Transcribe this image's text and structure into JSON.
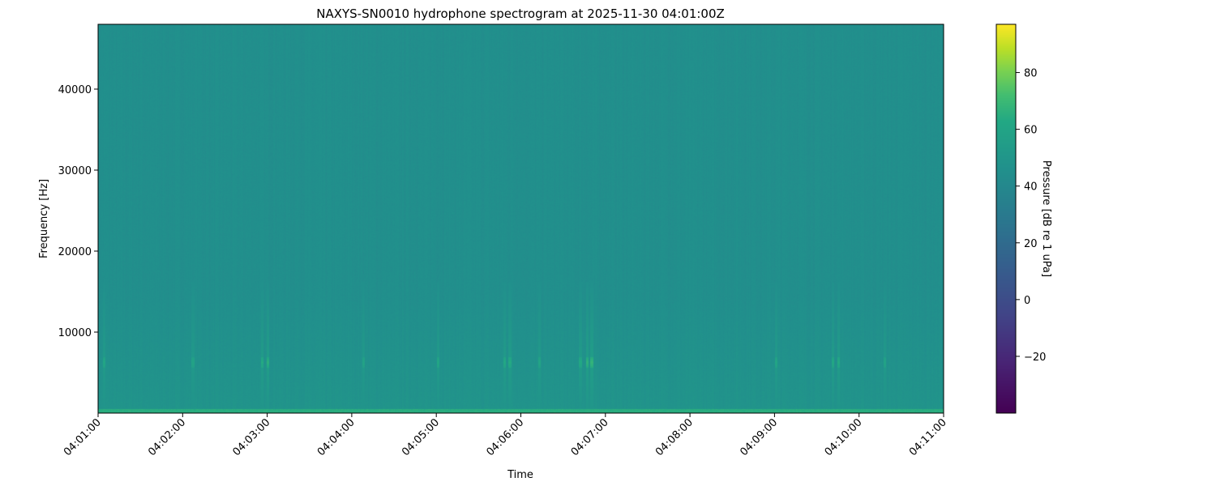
{
  "chart_data": {
    "type": "heatmap",
    "title": "NAXYS-SN0010 hydrophone spectrogram at 2025-11-30 04:01:00Z",
    "xlabel": "Time",
    "ylabel": "Frequency [Hz]",
    "xlim": [
      "04:01:00",
      "04:11:00"
    ],
    "ylim": [
      0,
      48000
    ],
    "x_ticks": [
      "04:01:00",
      "04:02:00",
      "04:03:00",
      "04:04:00",
      "04:05:00",
      "04:06:00",
      "04:07:00",
      "04:08:00",
      "04:09:00",
      "04:10:00",
      "04:11:00"
    ],
    "y_ticks": [
      10000,
      20000,
      30000,
      40000
    ],
    "colormap": "viridis",
    "colorbar": {
      "label": "Pressure [dB re 1 uPa]",
      "range": [
        -40,
        97
      ],
      "ticks": [
        -20,
        0,
        20,
        40,
        60,
        80
      ]
    },
    "background_level_db": 45,
    "low_frequency_band": {
      "freq_hz": [
        0,
        500
      ],
      "level_db": 65
    },
    "transient_events": [
      {
        "time": "04:01:04",
        "freq_hz": 6300,
        "level_db": 62
      },
      {
        "time": "04:02:07",
        "freq_hz": 6300,
        "level_db": 60
      },
      {
        "time": "04:02:56",
        "freq_hz": 6300,
        "level_db": 64
      },
      {
        "time": "04:03:00",
        "freq_hz": 6300,
        "level_db": 66
      },
      {
        "time": "04:04:08",
        "freq_hz": 6300,
        "level_db": 60
      },
      {
        "time": "04:05:01",
        "freq_hz": 6300,
        "level_db": 62
      },
      {
        "time": "04:05:48",
        "freq_hz": 6300,
        "level_db": 63
      },
      {
        "time": "04:05:52",
        "freq_hz": 6300,
        "level_db": 64
      },
      {
        "time": "04:06:13",
        "freq_hz": 6300,
        "level_db": 61
      },
      {
        "time": "04:06:42",
        "freq_hz": 6300,
        "level_db": 63
      },
      {
        "time": "04:06:47",
        "freq_hz": 6300,
        "level_db": 67
      },
      {
        "time": "04:06:50",
        "freq_hz": 6300,
        "level_db": 68
      },
      {
        "time": "04:09:01",
        "freq_hz": 6300,
        "level_db": 62
      },
      {
        "time": "04:09:41",
        "freq_hz": 6300,
        "level_db": 63
      },
      {
        "time": "04:09:45",
        "freq_hz": 6300,
        "level_db": 64
      },
      {
        "time": "04:10:18",
        "freq_hz": 6300,
        "level_db": 60
      }
    ]
  }
}
